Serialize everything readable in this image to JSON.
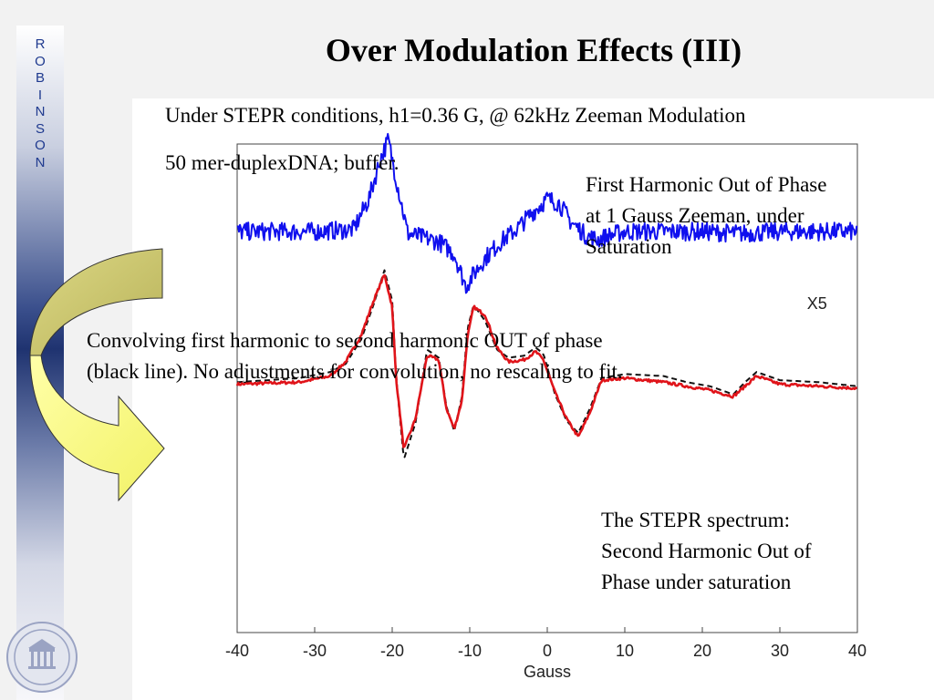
{
  "slide": {
    "title": "Over Modulation Effects (III)",
    "sidebar_letters": [
      "R",
      "O",
      "B",
      "I",
      "N",
      "S",
      "O",
      "N"
    ],
    "subtitle_lines": [
      "Under STEPR conditions, h1=0.36 G, @ 62kHz Zeeman Modulation",
      "50 mer-duplexDNA; buffer."
    ],
    "annotation_first_harmonic": [
      "First Harmonic Out of Phase",
      "at 1 Gauss Zeeman, under",
      "Saturation"
    ],
    "annotation_convolving": [
      "Convolving first harmonic to second harmonic OUT of  phase",
      "(black line).  No adjustments for convolution, no rescaling to fit."
    ],
    "annotation_stepr": [
      "The STEPR spectrum:",
      "Second Harmonic Out of",
      "Phase under saturation"
    ],
    "colors": {
      "first_harmonic": "#1010ee",
      "stepr": "#e0141a",
      "convolved": "#111111",
      "arrow_top": "#c9c46a",
      "arrow_bottom": "#ffff88",
      "sidebar_text": "#1f3a8f"
    },
    "logo_icon": "university-of-washington-seal-icon"
  },
  "chart_data": {
    "type": "line",
    "xlabel": "Gauss",
    "ylabel": "",
    "xlim": [
      -40,
      40
    ],
    "ylim": [
      -12,
      12
    ],
    "x_ticks": [
      -40,
      -30,
      -20,
      -10,
      0,
      10,
      20,
      30,
      40
    ],
    "x_tick_labels": [
      "-40",
      "-30",
      "-20",
      "-10",
      "0",
      "10",
      "20",
      "30",
      "40"
    ],
    "grid": false,
    "legend": "none",
    "annotations": [
      {
        "text": "X5",
        "x": 33.5,
        "y": 3.9
      }
    ],
    "series": [
      {
        "role": "first-harmonic",
        "style": "solid",
        "x": [
          -40,
          -30,
          -25,
          -23,
          -21.5,
          -20.5,
          -19.5,
          -18,
          -16,
          -14,
          -12,
          -10.5,
          -9.5,
          -8,
          -6,
          -4,
          -2,
          0,
          1.5,
          3,
          5,
          6.5,
          8,
          10,
          15,
          20,
          25,
          30,
          35,
          40
        ],
        "y": [
          7.7,
          7.7,
          7.8,
          9.3,
          11.3,
          12.2,
          10.3,
          7.6,
          7.4,
          7.2,
          6.6,
          5.0,
          5.6,
          6.4,
          7.2,
          7.8,
          8.6,
          9.3,
          9.1,
          8.2,
          7.5,
          7.3,
          7.5,
          7.7,
          7.7,
          7.7,
          7.6,
          7.7,
          7.7,
          7.7
        ]
      },
      {
        "role": "stepr",
        "style": "solid",
        "x": [
          -40,
          -32,
          -28,
          -26,
          -24,
          -22.5,
          -21,
          -20,
          -19.5,
          -18.5,
          -17,
          -15.5,
          -14,
          -13,
          -12,
          -11,
          -10.3,
          -9.5,
          -8,
          -6.5,
          -5,
          -3,
          -1.5,
          -0.5,
          1,
          2.5,
          4,
          5.5,
          7,
          10,
          15,
          18,
          21,
          24,
          25.5,
          27,
          30,
          35,
          40
        ],
        "y": [
          0.2,
          0.3,
          0.6,
          1.3,
          2.6,
          4.2,
          5.6,
          4.0,
          0.5,
          -3.0,
          -1.5,
          1.6,
          1.4,
          -1.0,
          -2.0,
          -0.6,
          2.5,
          4.0,
          3.6,
          2.0,
          1.3,
          1.4,
          1.8,
          1.4,
          -0.2,
          -1.5,
          -2.4,
          -1.2,
          0.4,
          0.5,
          0.3,
          0.1,
          -0.1,
          -0.4,
          0.1,
          0.6,
          0.2,
          0.1,
          0.0
        ]
      },
      {
        "role": "convolved",
        "style": "dashed",
        "x": [
          -40,
          -32,
          -28,
          -26,
          -24,
          -22.5,
          -21,
          -20,
          -19.5,
          -18.5,
          -17,
          -15.5,
          -14,
          -13,
          -12,
          -11,
          -10.3,
          -9.5,
          -8,
          -6.5,
          -5,
          -3,
          -1.5,
          -0.5,
          1,
          2.5,
          4,
          5.5,
          7,
          10,
          15,
          18,
          21,
          24,
          25.5,
          27,
          30,
          35,
          40
        ],
        "y": [
          0.3,
          0.5,
          0.8,
          1.2,
          2.4,
          4.0,
          5.8,
          4.3,
          0.6,
          -3.5,
          -1.7,
          1.9,
          1.5,
          -0.9,
          -2.1,
          -0.4,
          2.9,
          4.1,
          3.3,
          1.9,
          1.5,
          1.6,
          2.0,
          1.7,
          -0.3,
          -1.6,
          -2.2,
          -1.0,
          0.5,
          0.7,
          0.6,
          0.3,
          0.1,
          -0.3,
          0.3,
          0.8,
          0.4,
          0.3,
          0.1
        ]
      }
    ]
  }
}
